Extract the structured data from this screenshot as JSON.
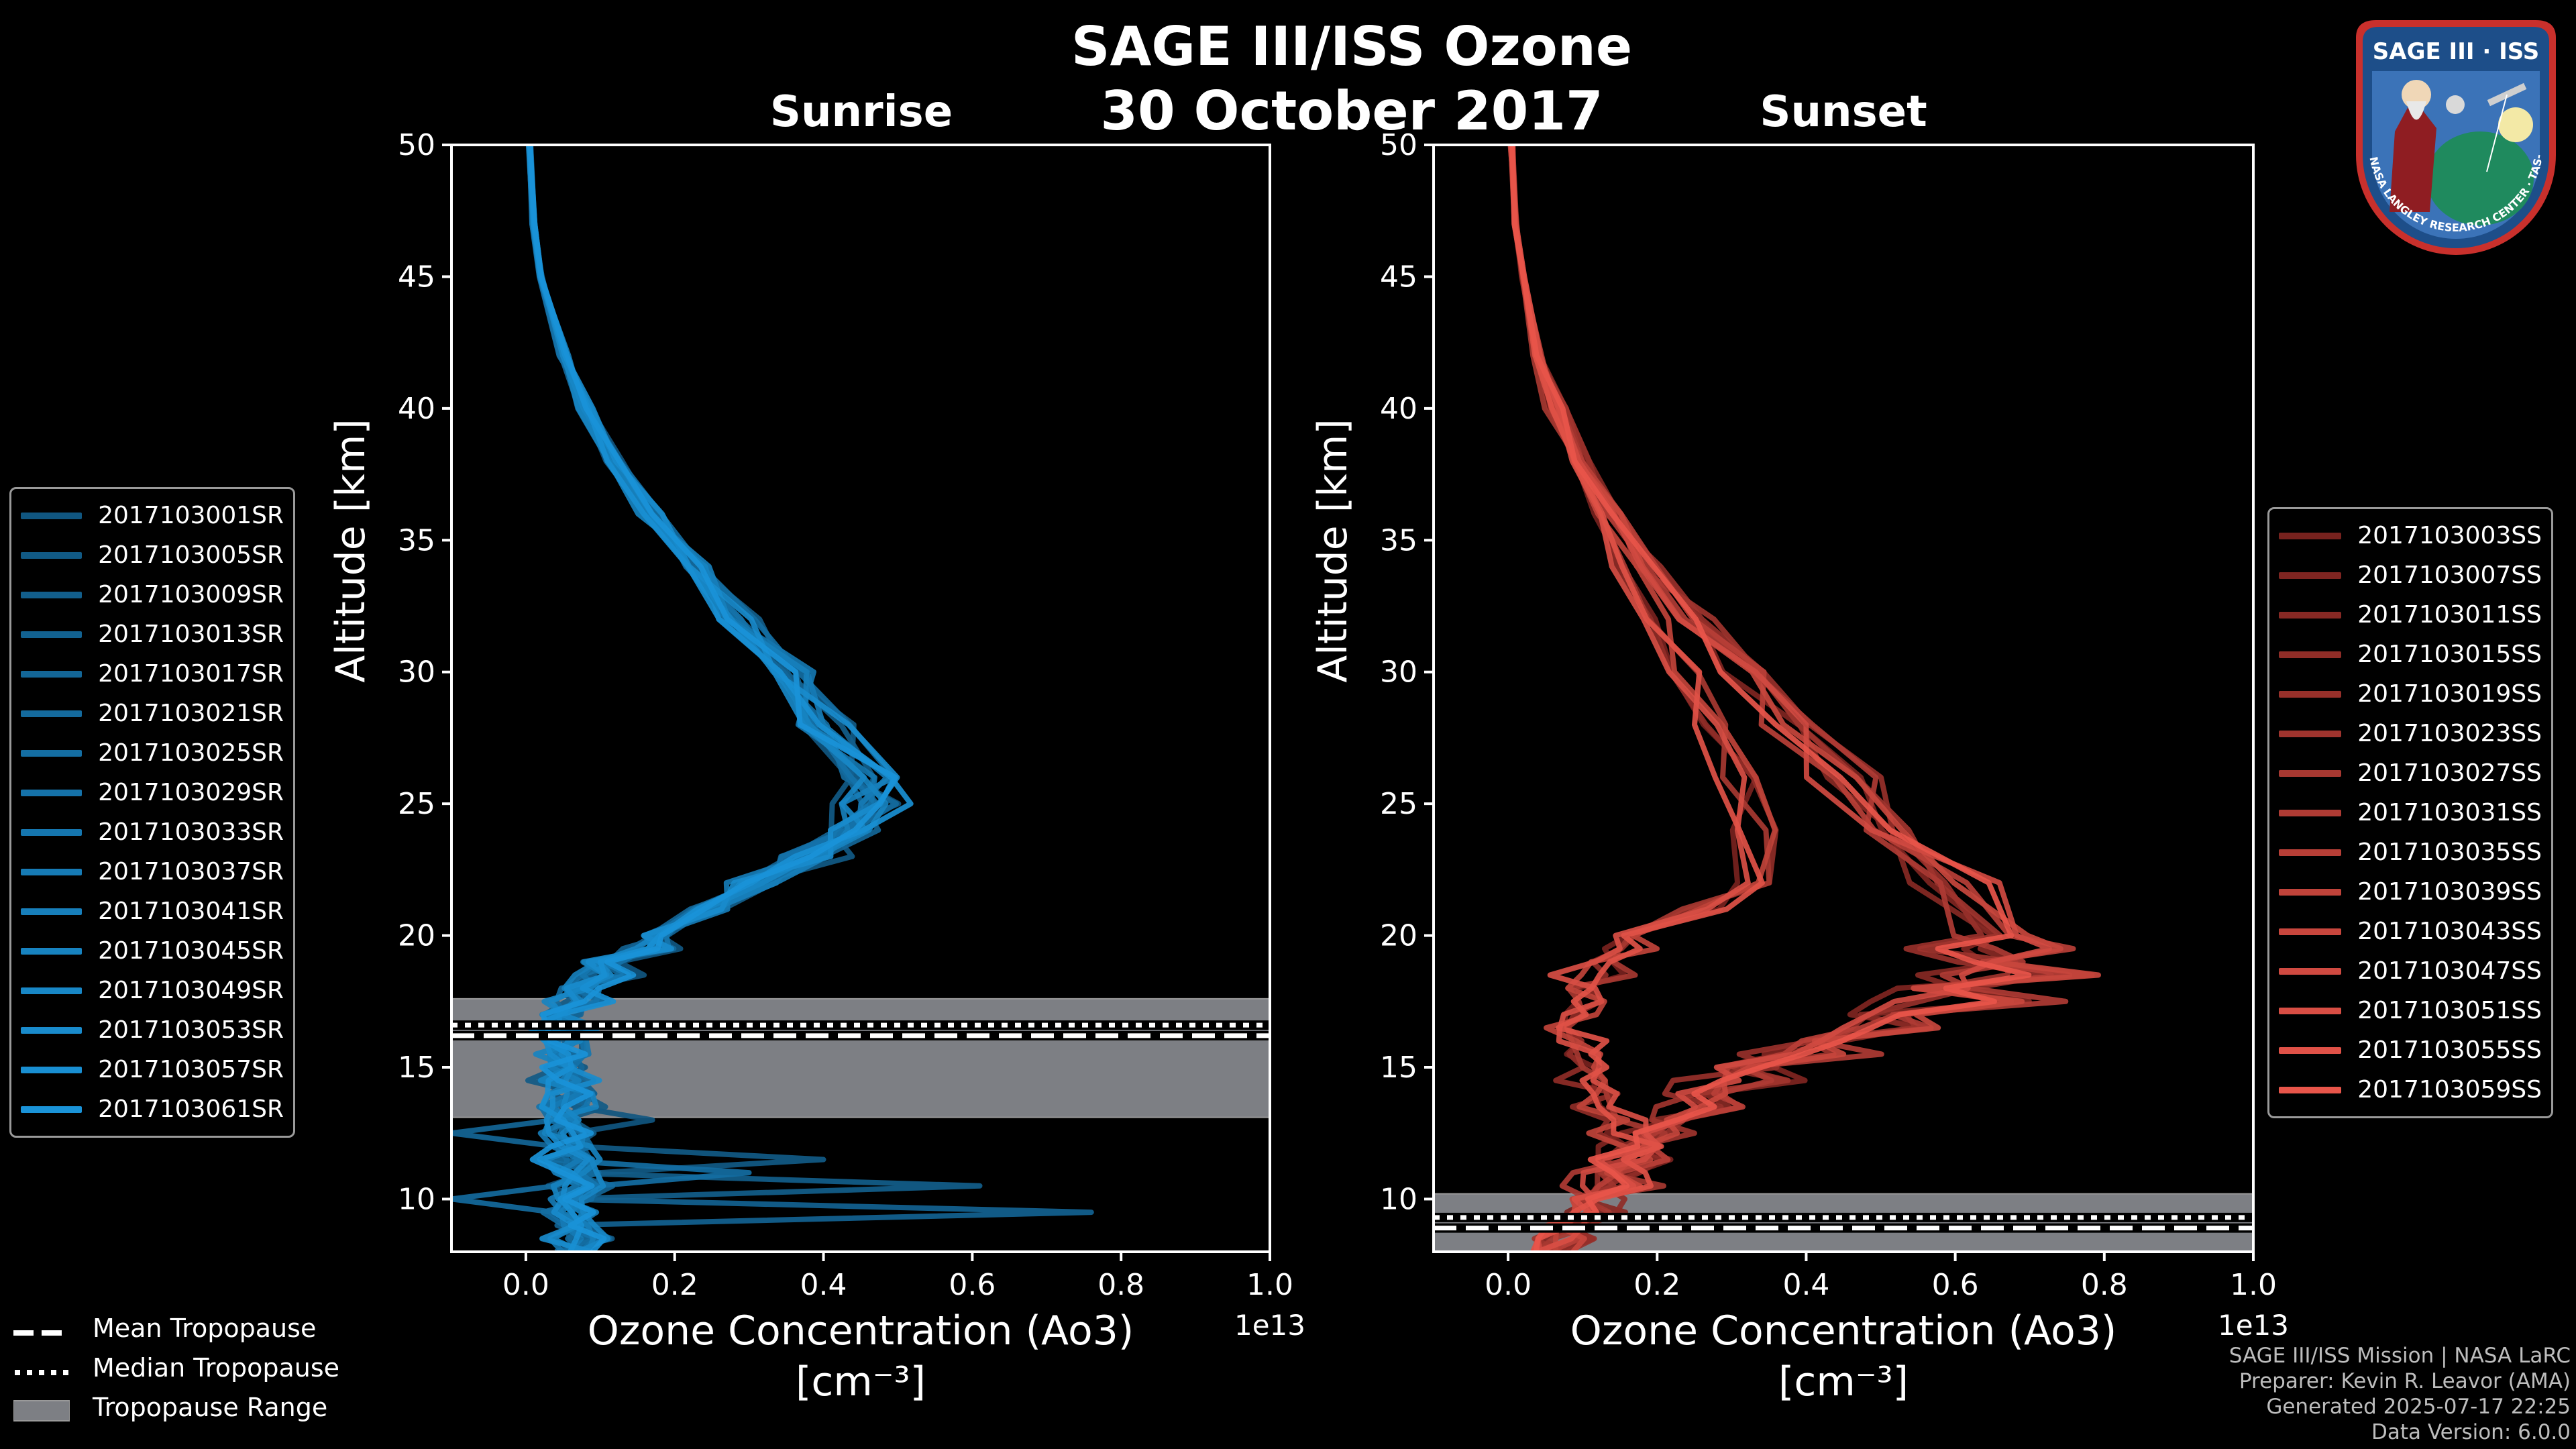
{
  "title": {
    "line1": "SAGE III/ISS Ozone",
    "line2": "30 October 2017"
  },
  "tropopause_legend": {
    "mean": "Mean Tropopause",
    "median": "Median Tropopause",
    "range": "Tropopause Range"
  },
  "footer": {
    "line1": "SAGE III/ISS Mission | NASA LaRC",
    "line2": "Preparer: Kevin R. Leavor (AMA)",
    "line3": "Generated 2025-07-17 22:25",
    "line4": "Data Version: 6.0.0"
  },
  "logo": {
    "title": "SAGE III · ISS",
    "ring_text": "BALL · NASA LANGLEY RESEARCH CENTER · TAS-I · ESA"
  },
  "chart_data": [
    {
      "type": "line",
      "title": "Sunrise",
      "xlabel": "Ozone Concentration (Ao3)",
      "xlabel_units": "[cm⁻³]",
      "ylabel": "Altitude [km]",
      "x_scale_label": "1e13",
      "xlim": [
        -0.1,
        1.0
      ],
      "ylim": [
        8,
        50
      ],
      "xticks": [
        "0.0",
        "0.2",
        "0.4",
        "0.6",
        "0.8",
        "1.0"
      ],
      "xtick_values": [
        0.0,
        0.2,
        0.4,
        0.6,
        0.8,
        1.0
      ],
      "yticks": [
        10,
        15,
        20,
        25,
        30,
        35,
        40,
        45,
        50
      ],
      "tropopause": {
        "mean": 16.2,
        "median": 16.6,
        "range": [
          13.1,
          17.6
        ]
      },
      "series_color_dark": "#0b3550",
      "series_color_light": "#1a93d8",
      "base_profile": [
        [
          50,
          0.005
        ],
        [
          47,
          0.01
        ],
        [
          45,
          0.02
        ],
        [
          42,
          0.05
        ],
        [
          40,
          0.08
        ],
        [
          38,
          0.12
        ],
        [
          36,
          0.17
        ],
        [
          34,
          0.23
        ],
        [
          32,
          0.29
        ],
        [
          30,
          0.35
        ],
        [
          28,
          0.41
        ],
        [
          26,
          0.46
        ],
        [
          25,
          0.465
        ],
        [
          24,
          0.44
        ],
        [
          23,
          0.39
        ],
        [
          22,
          0.31
        ],
        [
          21,
          0.24
        ],
        [
          20,
          0.17
        ],
        [
          19,
          0.11
        ],
        [
          18,
          0.07
        ],
        [
          17,
          0.05
        ],
        [
          16,
          0.05
        ],
        [
          15,
          0.05
        ],
        [
          14,
          0.06
        ],
        [
          13,
          0.05
        ],
        [
          12,
          0.06
        ],
        [
          11,
          0.07
        ],
        [
          10,
          0.06
        ],
        [
          9,
          0.07
        ],
        [
          8,
          0.06
        ]
      ],
      "spikes": [
        [
          13,
          0.17
        ],
        [
          11.5,
          0.4
        ],
        [
          10.5,
          0.61
        ],
        [
          9.6,
          0.76
        ],
        [
          12.5,
          -0.1
        ],
        [
          10,
          -0.1
        ],
        [
          11,
          0.3
        ]
      ],
      "series": [
        {
          "name": "2017103001SR"
        },
        {
          "name": "2017103005SR"
        },
        {
          "name": "2017103009SR"
        },
        {
          "name": "2017103013SR"
        },
        {
          "name": "2017103017SR"
        },
        {
          "name": "2017103021SR"
        },
        {
          "name": "2017103025SR"
        },
        {
          "name": "2017103029SR"
        },
        {
          "name": "2017103033SR"
        },
        {
          "name": "2017103037SR"
        },
        {
          "name": "2017103041SR"
        },
        {
          "name": "2017103045SR"
        },
        {
          "name": "2017103049SR"
        },
        {
          "name": "2017103053SR"
        },
        {
          "name": "2017103057SR"
        },
        {
          "name": "2017103061SR"
        }
      ]
    },
    {
      "type": "line",
      "title": "Sunset",
      "xlabel": "Ozone Concentration (Ao3)",
      "xlabel_units": "[cm⁻³]",
      "ylabel": "Altitude [km]",
      "x_scale_label": "1e13",
      "xlim": [
        -0.1,
        1.0
      ],
      "ylim": [
        8,
        50
      ],
      "xticks": [
        "0.0",
        "0.2",
        "0.4",
        "0.6",
        "0.8",
        "1.0"
      ],
      "xtick_values": [
        0.0,
        0.2,
        0.4,
        0.6,
        0.8,
        1.0
      ],
      "yticks": [
        10,
        15,
        20,
        25,
        30,
        35,
        40,
        45,
        50
      ],
      "tropopause": {
        "mean": 8.9,
        "median": 9.3,
        "range": [
          8.0,
          10.2
        ]
      },
      "series_color_dark": "#3a0606",
      "series_color_light": "#e8554a",
      "profile_tropical": [
        [
          50,
          0.005
        ],
        [
          47,
          0.01
        ],
        [
          45,
          0.02
        ],
        [
          42,
          0.04
        ],
        [
          40,
          0.07
        ],
        [
          38,
          0.1
        ],
        [
          36,
          0.14
        ],
        [
          34,
          0.19
        ],
        [
          32,
          0.25
        ],
        [
          30,
          0.31
        ],
        [
          28,
          0.38
        ],
        [
          26,
          0.45
        ],
        [
          24,
          0.52
        ],
        [
          22,
          0.6
        ],
        [
          20,
          0.65
        ],
        [
          19,
          0.68
        ],
        [
          18,
          0.6
        ],
        [
          17,
          0.5
        ],
        [
          16,
          0.4
        ],
        [
          15,
          0.32
        ],
        [
          14,
          0.25
        ],
        [
          13,
          0.2
        ],
        [
          12,
          0.16
        ],
        [
          11,
          0.12
        ],
        [
          10,
          0.1
        ],
        [
          9,
          0.08
        ],
        [
          8,
          0.06
        ]
      ],
      "profile_midlat": [
        [
          50,
          0.005
        ],
        [
          47,
          0.01
        ],
        [
          45,
          0.02
        ],
        [
          42,
          0.04
        ],
        [
          40,
          0.06
        ],
        [
          38,
          0.09
        ],
        [
          36,
          0.12
        ],
        [
          34,
          0.16
        ],
        [
          32,
          0.2
        ],
        [
          30,
          0.24
        ],
        [
          28,
          0.28
        ],
        [
          26,
          0.31
        ],
        [
          24,
          0.33
        ],
        [
          22,
          0.33
        ],
        [
          21,
          0.26
        ],
        [
          20,
          0.17
        ],
        [
          19,
          0.12
        ],
        [
          18,
          0.1
        ],
        [
          17,
          0.1
        ],
        [
          16,
          0.1
        ],
        [
          15,
          0.11
        ],
        [
          14,
          0.13
        ],
        [
          13,
          0.16
        ],
        [
          12,
          0.18
        ],
        [
          11,
          0.15
        ],
        [
          10,
          0.12
        ],
        [
          9,
          0.08
        ],
        [
          8,
          0.05
        ]
      ],
      "series": [
        {
          "name": "2017103003SS"
        },
        {
          "name": "2017103007SS"
        },
        {
          "name": "2017103011SS"
        },
        {
          "name": "2017103015SS"
        },
        {
          "name": "2017103019SS"
        },
        {
          "name": "2017103023SS"
        },
        {
          "name": "2017103027SS"
        },
        {
          "name": "2017103031SS"
        },
        {
          "name": "2017103035SS"
        },
        {
          "name": "2017103039SS"
        },
        {
          "name": "2017103043SS"
        },
        {
          "name": "2017103047SS"
        },
        {
          "name": "2017103051SS"
        },
        {
          "name": "2017103055SS"
        },
        {
          "name": "2017103059SS"
        }
      ]
    }
  ]
}
